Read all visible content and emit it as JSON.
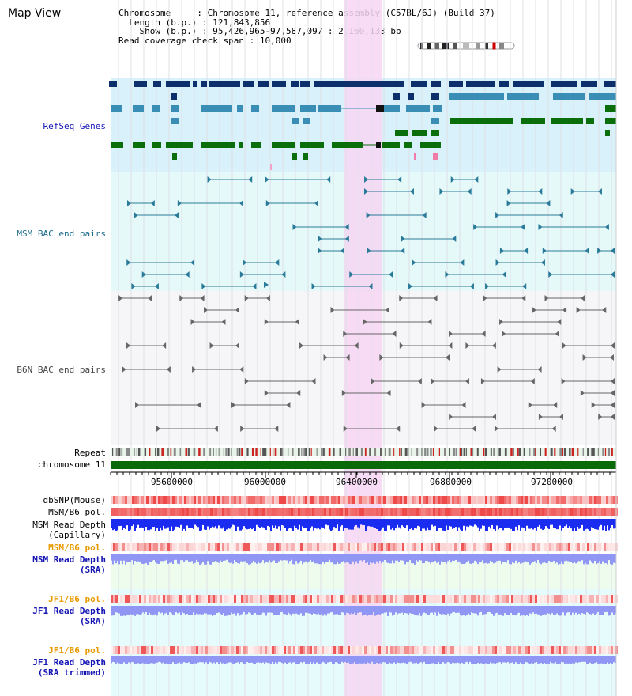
{
  "page": {
    "title": "Map View"
  },
  "info": {
    "chromosome_label": "Chromosome",
    "chromosome_value": "Chromosome 11, reference assembly (C57BL/6J) (Build 37)",
    "length_label": "Length (b.p.)",
    "length_value": "121,843,856",
    "show_label": "Show (b.p.)",
    "show_value": "95,426,965-97,587,097 : 2,160,133 bp",
    "span_label": "Read coverage check span",
    "span_value": "10,000"
  },
  "colors": {
    "refseq_bg": "#d9f1fb",
    "msm_bac_bg": "#e5f9f9",
    "b6n_bac_bg": "#f6f6f8",
    "highlight": "#f7d6f3",
    "gene_dark": "#0d2f6b",
    "gene_mid": "#3a8eb6",
    "gene_green": "#0a6e0a",
    "msm_pair": "#2a7a9a",
    "b6n_pair": "#666666",
    "chromosome_bar": "#0a6a0a",
    "snp": "#f06a6a",
    "depth_blue": "#1a2cf0",
    "depth_light": "#8f96f3",
    "label_blue": "#1414b4",
    "label_orange": "#e89a00"
  },
  "tracks": {
    "refseq": "RefSeq Genes",
    "msm_bac": "MSM BAC end pairs",
    "b6n_bac": "B6N BAC end pairs",
    "repeat": "Repeat",
    "chromosome": "chromosome 11",
    "dbsnp": "dbSNP(Mouse)",
    "msm_b6_pol": "MSM/B6 pol.",
    "msm_depth_cap_1": "MSM Read Depth",
    "msm_depth_cap_2": "(Capillary)",
    "msm_b6_pol_2": "MSM/B6 pol.",
    "msm_depth_sra_1": "MSM Read Depth",
    "msm_depth_sra_2": "(SRA)",
    "jf1_b6_pol": "JF1/B6 pol.",
    "jf1_depth_sra_1": "JF1 Read Depth",
    "jf1_depth_sra_2": "(SRA)",
    "jf1_b6_pol_2": "JF1/B6 pol.",
    "jf1_depth_trim_1": "JF1 Read Depth",
    "jf1_depth_trim_2": "(SRA trimmed)"
  },
  "axis": {
    "ticks": [
      "95600000",
      "96000000",
      "96400000",
      "96800000",
      "97200000"
    ]
  }
}
